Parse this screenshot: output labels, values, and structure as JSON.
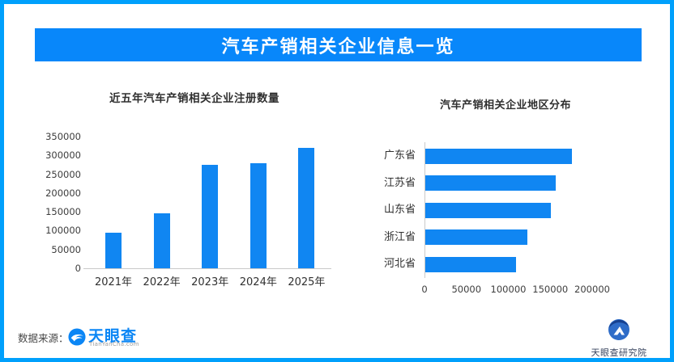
{
  "page": {
    "border_color": "#00a0fc",
    "background": "#ffffff"
  },
  "header": {
    "title": "汽车产销相关企业信息一览",
    "bg_color": "#0887fa",
    "text_color": "#ffffff"
  },
  "chart_data": [
    {
      "type": "bar",
      "orientation": "vertical",
      "title": "近五年汽车产销相关企业注册数量",
      "categories": [
        "2021年",
        "2022年",
        "2023年",
        "2024年",
        "2025年"
      ],
      "values": [
        95000,
        145000,
        275000,
        280000,
        320000
      ],
      "ylim": [
        0,
        350000
      ],
      "yticks": [
        0,
        50000,
        100000,
        150000,
        200000,
        250000,
        300000,
        350000
      ],
      "grid": false,
      "legend": null,
      "bar_color": "#1086f2"
    },
    {
      "type": "bar",
      "orientation": "horizontal",
      "title": "汽车产销相关企业地区分布",
      "categories": [
        "广东省",
        "江苏省",
        "山东省",
        "浙江省",
        "河北省"
      ],
      "values": [
        175000,
        156000,
        150000,
        122000,
        108000
      ],
      "xlim": [
        0,
        200000
      ],
      "xticks": [
        0,
        50000,
        100000,
        150000,
        200000
      ],
      "grid": false,
      "legend": null,
      "bar_color": "#1086f2"
    }
  ],
  "footer": {
    "source_label": "数据来源：",
    "source_logo": {
      "name": "天眼查",
      "subtext": "TianYanCha.com",
      "color": "#0b86f5"
    }
  },
  "branding": {
    "label": "天眼查研究院"
  }
}
